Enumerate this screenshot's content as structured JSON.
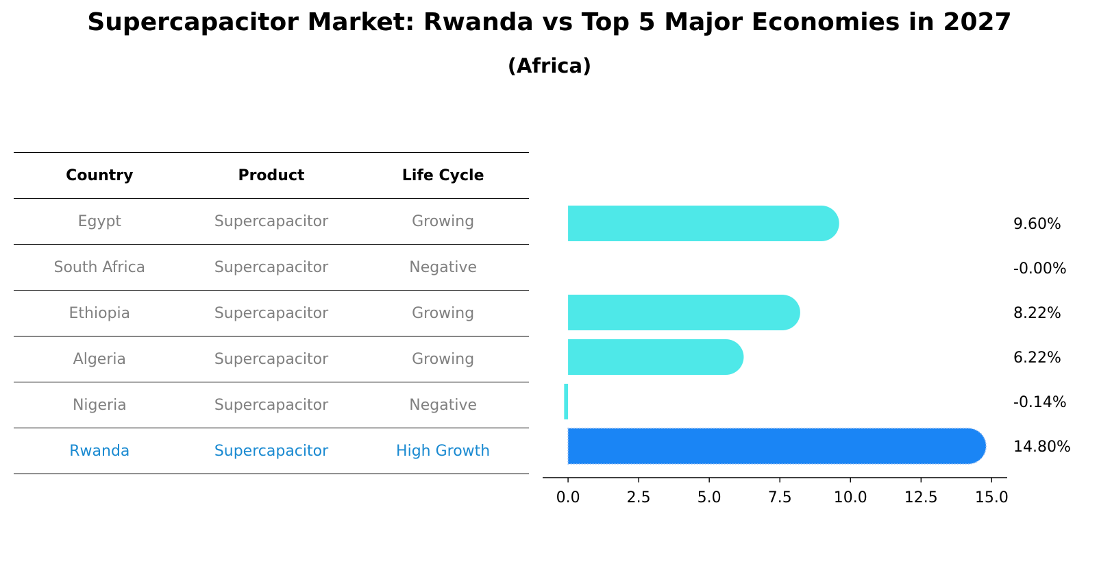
{
  "title": "Supercapacitor Market: Rwanda vs Top 5 Major Economies in 2027",
  "subtitle": "(Africa)",
  "table": {
    "headers": [
      "Country",
      "Product",
      "Life Cycle"
    ],
    "rows": [
      {
        "country": "Egypt",
        "product": "Supercapacitor",
        "life_cycle": "Growing"
      },
      {
        "country": "South Africa",
        "product": "Supercapacitor",
        "life_cycle": "Negative"
      },
      {
        "country": "Ethiopia",
        "product": "Supercapacitor",
        "life_cycle": "Growing"
      },
      {
        "country": "Algeria",
        "product": "Supercapacitor",
        "life_cycle": "Growing"
      },
      {
        "country": "Nigeria",
        "product": "Supercapacitor",
        "life_cycle": "Negative"
      },
      {
        "country": "Rwanda",
        "product": "Supercapacitor",
        "life_cycle": "High Growth"
      }
    ]
  },
  "chart_data": {
    "type": "bar",
    "orientation": "horizontal",
    "categories": [
      "Egypt",
      "South Africa",
      "Ethiopia",
      "Algeria",
      "Nigeria",
      "Rwanda"
    ],
    "values": [
      9.6,
      -0.0,
      8.22,
      6.22,
      -0.14,
      14.8
    ],
    "value_labels": [
      "9.60%",
      "-0.00%",
      "8.22%",
      "6.22%",
      "-0.14%",
      "14.80%"
    ],
    "highlight_index": 5,
    "xlim": [
      -0.9,
      15.55
    ],
    "xticks": [
      0.0,
      2.5,
      5.0,
      7.5,
      10.0,
      12.5,
      15.0
    ],
    "xtick_labels": [
      "0.0",
      "2.5",
      "5.0",
      "7.5",
      "10.0",
      "12.5",
      "15.0"
    ],
    "xlabel": "",
    "ylabel": "",
    "grid": false,
    "colors": {
      "default": "#4ee8e8",
      "highlight": "#1a85f5"
    }
  },
  "colors": {
    "text_muted": "#808080",
    "text_highlight": "#1a8ad1"
  }
}
